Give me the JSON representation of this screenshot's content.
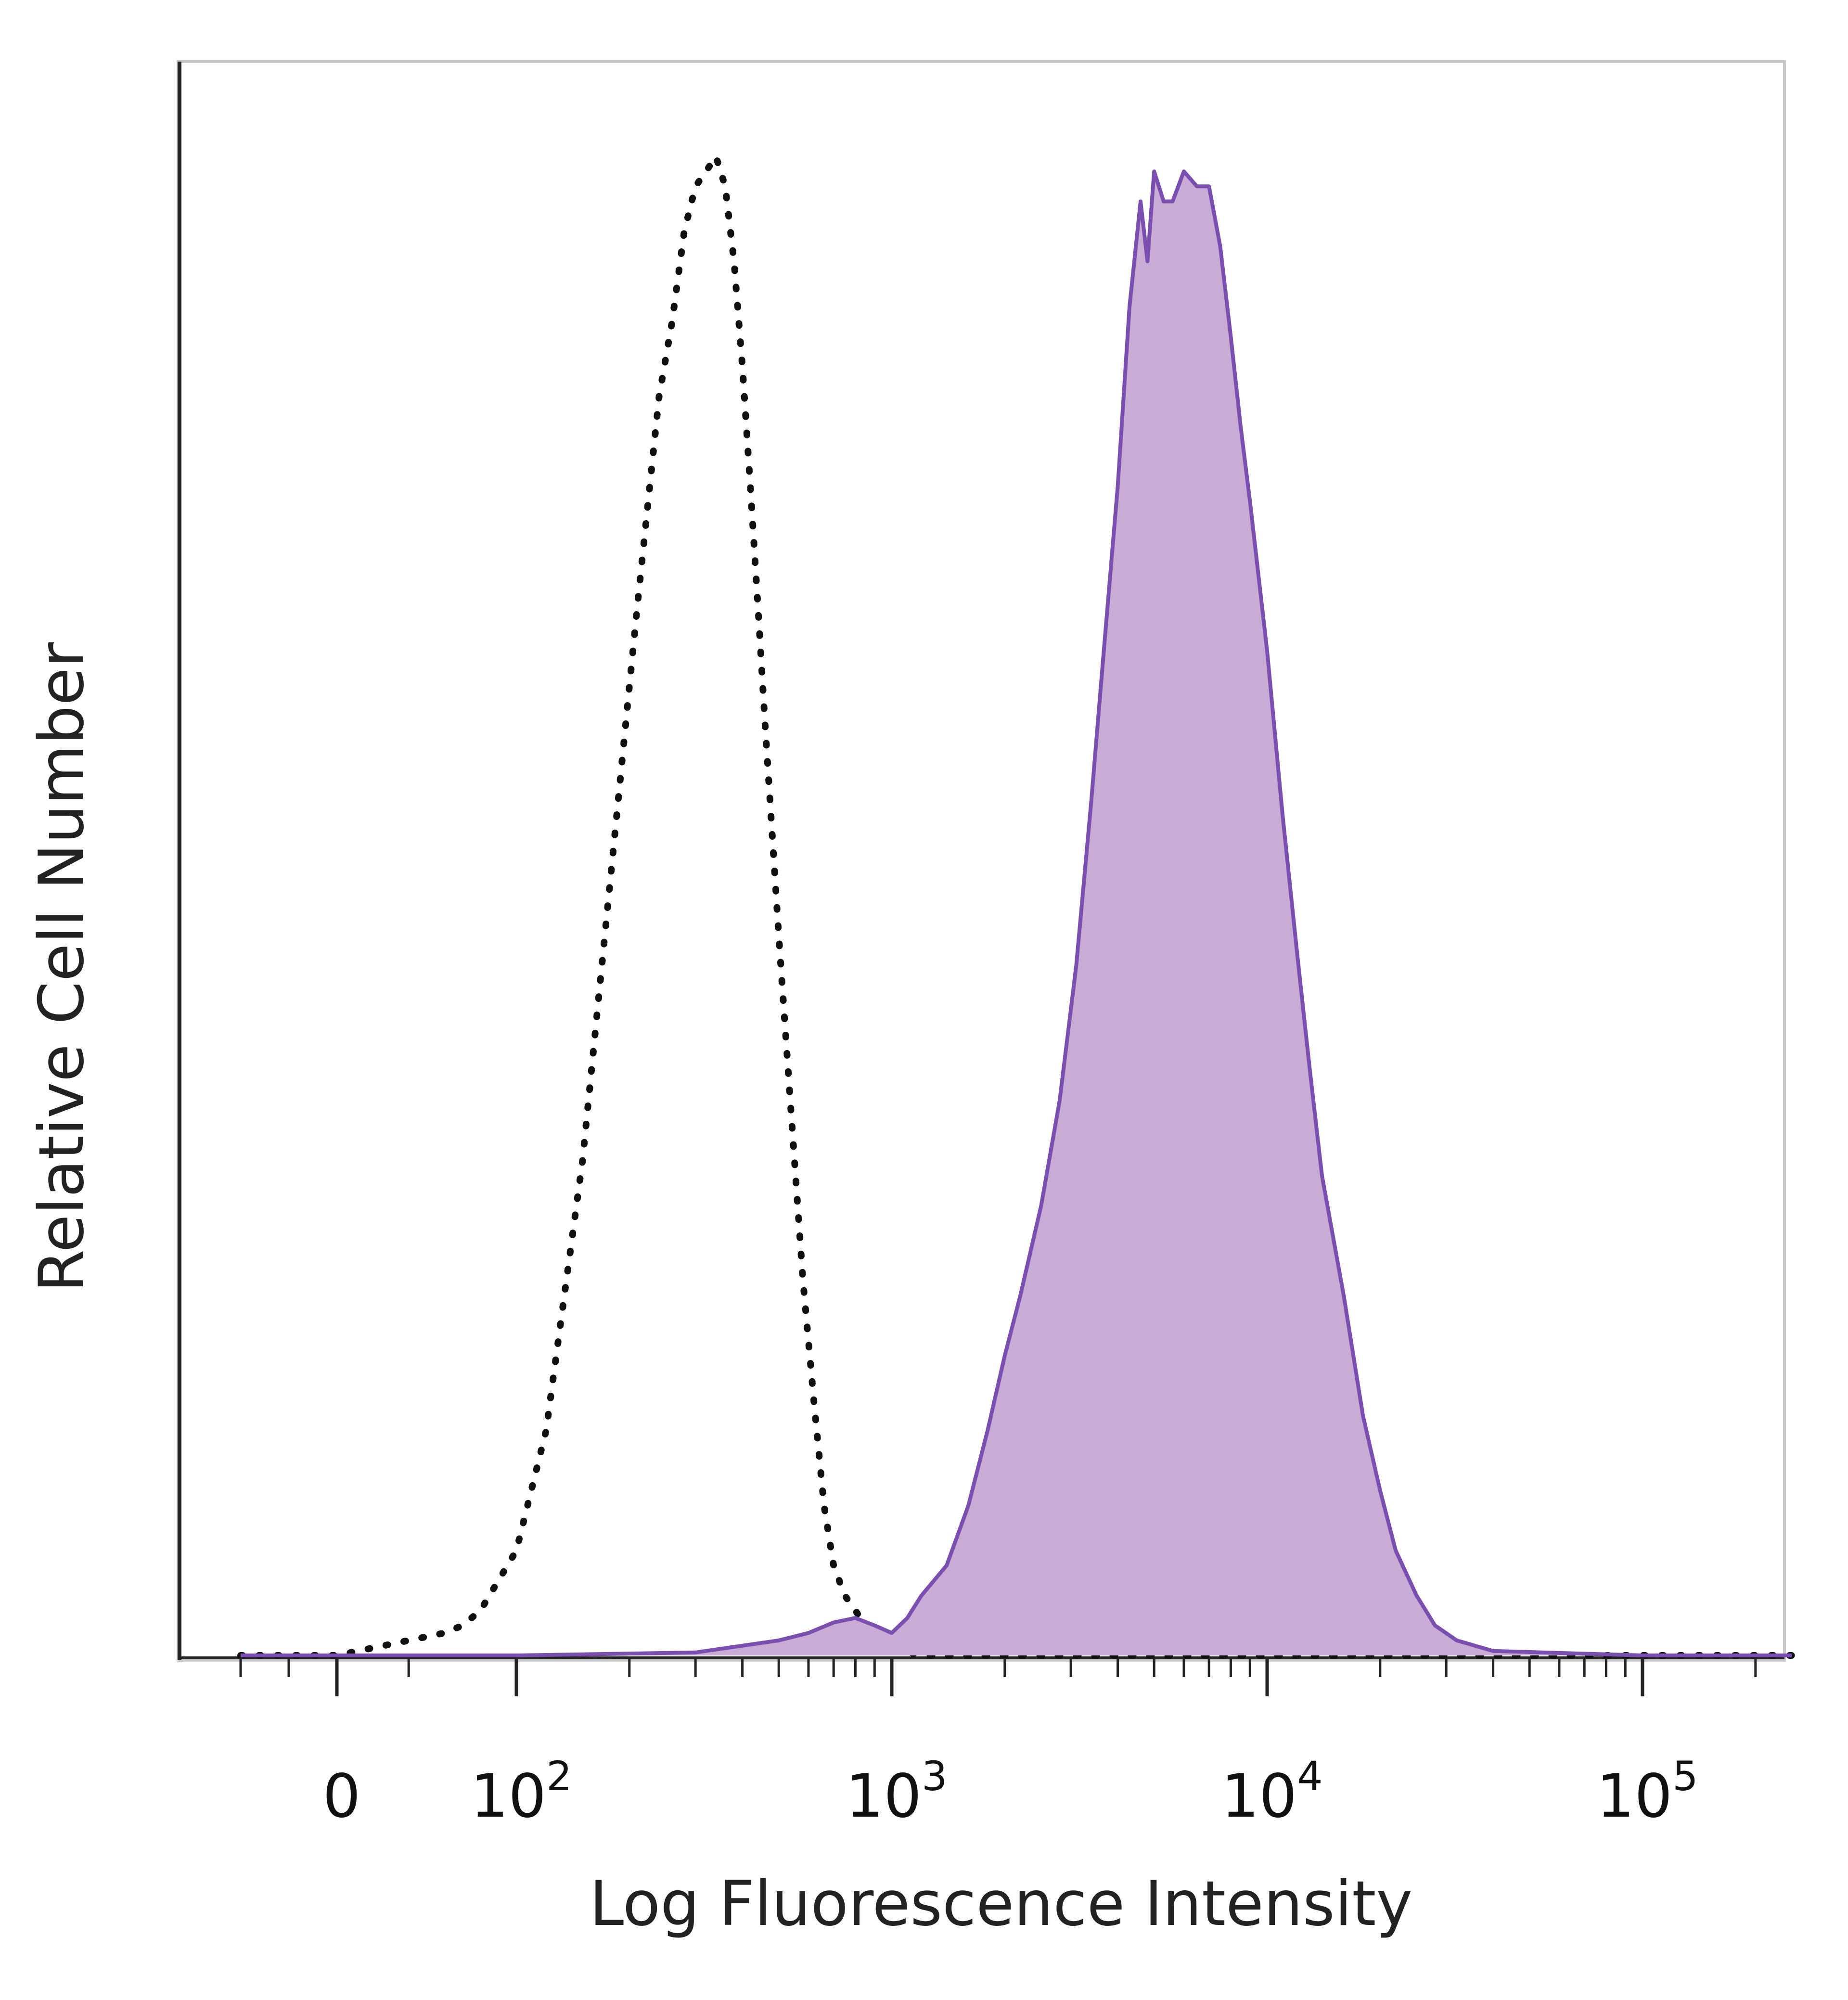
{
  "chart_data": {
    "type": "area",
    "xscale": "biexponential",
    "xlabel": "Log Fluorescence Intensity",
    "ylabel": "Relative Cell Number",
    "xlim": [
      -80,
      250000
    ],
    "ylim": [
      0,
      1.08
    ],
    "x_ticks": [
      {
        "value": 0,
        "base": "0",
        "exp": ""
      },
      {
        "value": 100,
        "base": "10",
        "exp": "2"
      },
      {
        "value": 1000,
        "base": "10",
        "exp": "3"
      },
      {
        "value": 10000,
        "base": "10",
        "exp": "4"
      },
      {
        "value": 100000,
        "base": "10",
        "exp": "5"
      }
    ],
    "grid": false,
    "legend": "none",
    "series": [
      {
        "style": "dotted-outline",
        "color": "#111111",
        "fill": "none",
        "x": [
          -80,
          -40,
          0,
          20,
          40,
          60,
          70,
          80,
          100,
          120,
          150,
          180,
          210,
          240,
          260,
          280,
          300,
          320,
          340,
          360,
          380,
          400,
          420,
          440,
          460,
          500,
          540,
          580,
          620,
          660,
          700,
          750,
          800,
          850,
          900,
          1000,
          1200,
          2000,
          10000,
          100000,
          250000
        ],
        "y": [
          0.0,
          0.0,
          0.0,
          0.005,
          0.01,
          0.015,
          0.02,
          0.03,
          0.07,
          0.15,
          0.33,
          0.53,
          0.7,
          0.84,
          0.89,
          0.95,
          0.98,
          0.99,
          1.0,
          0.98,
          0.93,
          0.86,
          0.78,
          0.7,
          0.62,
          0.48,
          0.36,
          0.25,
          0.17,
          0.1,
          0.06,
          0.04,
          0.03,
          0.02,
          0.01,
          0.005,
          0.0,
          0.0,
          0.0,
          0.0,
          0.0
        ]
      },
      {
        "style": "filled",
        "color": "#7a4fb0",
        "fill": "#c8acd6",
        "x": [
          -80,
          0,
          100,
          300,
          500,
          600,
          700,
          800,
          900,
          1000,
          1100,
          1200,
          1400,
          1600,
          1800,
          2000,
          2200,
          2500,
          2800,
          3100,
          3400,
          3700,
          4000,
          4300,
          4600,
          4800,
          5000,
          5300,
          5600,
          6000,
          6500,
          7000,
          7500,
          8000,
          8500,
          9000,
          10000,
          11000,
          12000,
          13000,
          14000,
          16000,
          18000,
          20000,
          22000,
          25000,
          28000,
          32000,
          40000,
          100000,
          250000
        ],
        "y": [
          0.0,
          0.0,
          0.0,
          0.002,
          0.01,
          0.015,
          0.022,
          0.025,
          0.02,
          0.015,
          0.025,
          0.04,
          0.06,
          0.1,
          0.15,
          0.2,
          0.24,
          0.3,
          0.37,
          0.46,
          0.57,
          0.68,
          0.78,
          0.9,
          0.97,
          0.93,
          0.99,
          0.97,
          0.97,
          0.99,
          0.98,
          0.98,
          0.94,
          0.88,
          0.82,
          0.77,
          0.67,
          0.56,
          0.47,
          0.39,
          0.32,
          0.24,
          0.16,
          0.11,
          0.07,
          0.04,
          0.02,
          0.01,
          0.003,
          0.0,
          0.0
        ]
      }
    ]
  }
}
